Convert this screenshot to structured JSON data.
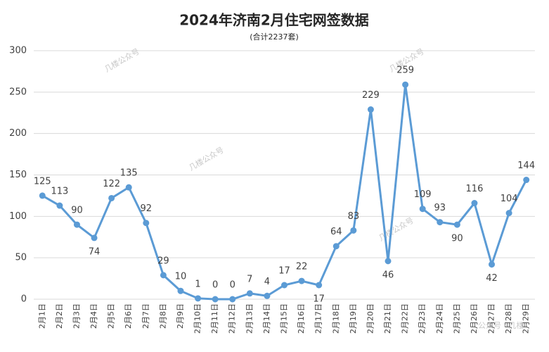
{
  "chart_data": {
    "type": "line",
    "title": "2024年济南2月住宅网签数据",
    "subtitle": "(合计2237套)",
    "categories": [
      "2月1日",
      "2月2日",
      "2月3日",
      "2月4日",
      "2月5日",
      "2月6日",
      "2月7日",
      "2月8日",
      "2月9日",
      "2月10日",
      "2月11日",
      "2月12日",
      "2月13日",
      "2月14日",
      "2月15日",
      "2月16日",
      "2月17日",
      "2月18日",
      "2月19日",
      "2月20日",
      "2月21日",
      "2月22日",
      "2月23日",
      "2月24日",
      "2月25日",
      "2月26日",
      "2月27日",
      "2月28日",
      "2月29日"
    ],
    "series": [
      {
        "name": "住宅网签",
        "color": "#5b9bd5",
        "values": [
          125,
          113,
          90,
          74,
          122,
          135,
          92,
          29,
          10,
          1,
          0,
          0,
          7,
          4,
          17,
          22,
          17,
          64,
          83,
          229,
          46,
          259,
          109,
          93,
          90,
          116,
          42,
          104,
          144
        ]
      }
    ],
    "ylim": [
      0,
      300
    ],
    "yticks": [
      0,
      50,
      100,
      150,
      200,
      250,
      300
    ],
    "grid": true,
    "watermarks": [
      "几楼公众号",
      "几楼公众号",
      "几楼公众号",
      "几楼公众号",
      "公众号 · 几楼"
    ]
  }
}
